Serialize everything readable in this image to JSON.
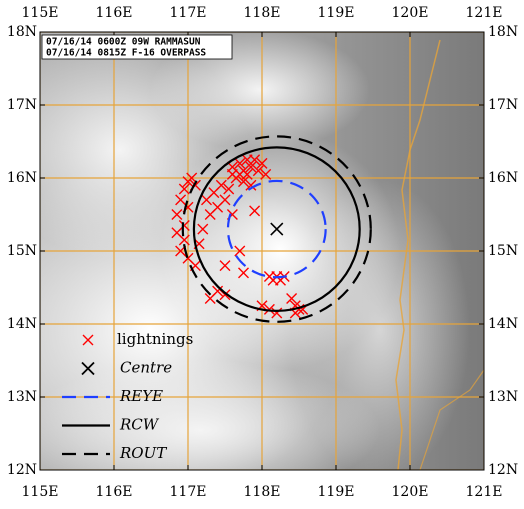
{
  "annotation": [
    "07/16/14 0600Z 09W RAMMASUN",
    "07/16/14 0815Z F-16 OVERPASS"
  ],
  "chart_data": {
    "type": "scatter",
    "xlim": [
      115,
      121
    ],
    "ylim": [
      12,
      18
    ],
    "xticks": [
      {
        "value": 115,
        "label": "115E"
      },
      {
        "value": 116,
        "label": "116E"
      },
      {
        "value": 117,
        "label": "117E"
      },
      {
        "value": 118,
        "label": "118E"
      },
      {
        "value": 119,
        "label": "119E"
      },
      {
        "value": 120,
        "label": "120E"
      },
      {
        "value": 121,
        "label": "121E"
      }
    ],
    "yticks": [
      {
        "value": 12,
        "label": "12N"
      },
      {
        "value": 13,
        "label": "13N"
      },
      {
        "value": 14,
        "label": "14N"
      },
      {
        "value": 15,
        "label": "15N"
      },
      {
        "value": 16,
        "label": "16N"
      },
      {
        "value": 17,
        "label": "17N"
      },
      {
        "value": 18,
        "label": "18N"
      }
    ],
    "grid": true,
    "grid_color": "#e6a43a",
    "legend": "lower left",
    "series": [
      {
        "name": "lightnings",
        "color": "#ff0000",
        "marker": "x",
        "x": [
          117.0,
          117.05,
          116.95,
          116.9,
          117.0,
          116.85,
          116.95,
          116.85,
          116.95,
          116.9,
          117.0,
          117.1,
          117.15,
          117.2,
          117.3,
          117.25,
          117.35,
          117.1,
          117.45,
          117.5,
          117.55,
          117.4,
          117.6,
          117.7,
          117.75,
          117.8,
          117.85,
          117.9,
          117.65,
          117.7,
          117.95,
          118.0,
          117.8,
          117.6,
          117.75,
          117.85,
          118.05,
          117.6,
          117.9,
          117.7,
          117.5,
          117.75,
          117.4,
          117.3,
          117.5,
          118.1,
          118.15,
          118.2,
          118.25,
          118.3,
          118.1,
          118.2,
          118.0,
          118.4,
          118.45,
          118.5,
          118.55,
          118.45
        ],
        "y": [
          15.95,
          16.0,
          15.85,
          15.7,
          15.6,
          15.5,
          15.35,
          15.25,
          15.15,
          15.0,
          14.9,
          14.8,
          15.1,
          15.3,
          15.5,
          15.7,
          15.8,
          15.9,
          15.9,
          15.7,
          15.85,
          15.6,
          16.15,
          16.2,
          16.1,
          16.05,
          16.15,
          16.25,
          16.0,
          16.05,
          16.1,
          16.2,
          16.25,
          16.05,
          15.95,
          15.9,
          16.05,
          15.5,
          15.55,
          15.0,
          14.8,
          14.7,
          14.45,
          14.35,
          14.4,
          14.65,
          14.6,
          14.65,
          14.6,
          14.65,
          14.2,
          14.15,
          14.25,
          14.35,
          14.25,
          14.2,
          14.2,
          14.15
        ]
      },
      {
        "name": "Centre",
        "color": "#000000",
        "marker": "x",
        "x": [
          118.2
        ],
        "y": [
          15.3
        ]
      },
      {
        "name": "REYE",
        "color": "#1f3fff",
        "dash": true,
        "x": [
          118.2
        ],
        "y": [
          15.3
        ],
        "radius": 0.66
      },
      {
        "name": "RCW",
        "color": "#000000",
        "dash": false,
        "x": [
          118.2
        ],
        "y": [
          15.3
        ],
        "radius": 1.12
      },
      {
        "name": "ROUT",
        "color": "#000000",
        "dash": true,
        "x": [
          118.2
        ],
        "y": [
          15.3
        ],
        "radius": 1.27
      }
    ]
  }
}
